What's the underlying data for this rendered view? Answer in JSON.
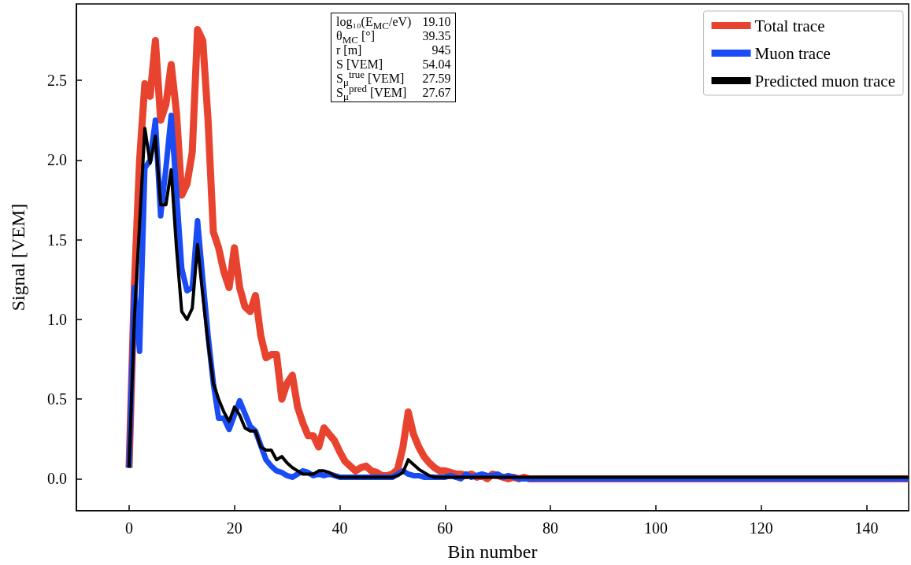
{
  "chart_data": {
    "type": "line",
    "xlabel": "Bin number",
    "ylabel": "Signal [VEM]",
    "xlim": [
      -10,
      148
    ],
    "ylim": [
      -0.2,
      2.98
    ],
    "xticks": [
      0,
      20,
      40,
      60,
      80,
      100,
      120,
      140
    ],
    "yticks": [
      {
        "value": 0,
        "label": "0.0"
      },
      {
        "value": 0.5,
        "label": "0.5"
      },
      {
        "value": 1,
        "label": "1.0"
      },
      {
        "value": 1.5,
        "label": "1.5"
      },
      {
        "value": 2,
        "label": "2.0"
      },
      {
        "value": 2.5,
        "label": "2.5"
      }
    ],
    "legend": "top right",
    "x": [
      0,
      1,
      2,
      3,
      4,
      5,
      6,
      7,
      8,
      9,
      10,
      11,
      12,
      13,
      14,
      15,
      16,
      17,
      18,
      19,
      20,
      21,
      22,
      23,
      24,
      25,
      26,
      27,
      28,
      29,
      30,
      31,
      32,
      33,
      34,
      35,
      36,
      37,
      38,
      39,
      40,
      41,
      42,
      43,
      44,
      45,
      46,
      47,
      48,
      49,
      50,
      51,
      52,
      53,
      54,
      55,
      56,
      57,
      58,
      59,
      60,
      61,
      62,
      63,
      64,
      65,
      66,
      67,
      68,
      69,
      70,
      71,
      72,
      73,
      74,
      75,
      76,
      77,
      78,
      79,
      148
    ],
    "series": [
      {
        "name": "Total trace",
        "color": "#e8432e",
        "values": [
          0.07,
          1.2,
          2.0,
          2.48,
          2.4,
          2.75,
          2.25,
          2.35,
          2.6,
          2.3,
          1.78,
          1.85,
          2.05,
          2.82,
          2.75,
          2.25,
          1.55,
          1.45,
          1.3,
          1.2,
          1.45,
          1.2,
          1.08,
          1.05,
          1.15,
          0.9,
          0.76,
          0.78,
          0.78,
          0.5,
          0.6,
          0.65,
          0.45,
          0.35,
          0.27,
          0.27,
          0.2,
          0.32,
          0.28,
          0.24,
          0.17,
          0.11,
          0.08,
          0.05,
          0.07,
          0.08,
          0.05,
          0.04,
          0.02,
          0.02,
          0.03,
          0.06,
          0.2,
          0.42,
          0.28,
          0.2,
          0.14,
          0.1,
          0.07,
          0.05,
          0.05,
          0.04,
          0.03,
          0.03,
          0.02,
          0.03,
          0.01,
          0.02,
          0.0,
          0.03,
          0.02,
          0.01,
          0.0,
          0.01,
          0.0,
          0.01,
          0.0,
          0.0,
          0.0,
          0.0,
          0.0
        ]
      },
      {
        "name": "Muon trace",
        "color": "#1a4cf5",
        "values": [
          0.07,
          1.2,
          0.8,
          1.95,
          2.0,
          2.25,
          1.65,
          1.95,
          2.28,
          1.8,
          1.32,
          1.18,
          1.2,
          1.62,
          1.25,
          0.9,
          0.6,
          0.38,
          0.38,
          0.31,
          0.4,
          0.49,
          0.41,
          0.33,
          0.3,
          0.21,
          0.12,
          0.08,
          0.05,
          0.04,
          0.02,
          0.01,
          0.03,
          0.05,
          0.04,
          0.02,
          0.03,
          0.02,
          0.03,
          0.02,
          0.01,
          0.01,
          0.01,
          0.01,
          0.01,
          0.01,
          0.01,
          0.01,
          0.01,
          0.01,
          0.01,
          0.03,
          0.05,
          0.03,
          0.02,
          0.02,
          0.01,
          0.01,
          0.01,
          0.01,
          0.01,
          0.02,
          0.01,
          0.0,
          0.03,
          0.01,
          0.02,
          0.03,
          0.02,
          0.02,
          0.03,
          0.01,
          0.02,
          0.01,
          0.0,
          0.0,
          0.0,
          0.0,
          0.0,
          0.0,
          0.0
        ]
      },
      {
        "name": "Predicted muon trace",
        "color": "#000000",
        "values": [
          0.07,
          1.0,
          1.6,
          2.2,
          1.98,
          2.15,
          1.72,
          1.72,
          1.94,
          1.45,
          1.05,
          1.0,
          1.07,
          1.47,
          1.15,
          0.85,
          0.6,
          0.5,
          0.42,
          0.36,
          0.45,
          0.4,
          0.32,
          0.3,
          0.3,
          0.2,
          0.18,
          0.18,
          0.12,
          0.14,
          0.1,
          0.07,
          0.05,
          0.03,
          0.03,
          0.03,
          0.05,
          0.05,
          0.04,
          0.02,
          0.01,
          0.01,
          0.01,
          0.01,
          0.01,
          0.01,
          0.01,
          0.01,
          0.01,
          0.01,
          0.01,
          0.02,
          0.04,
          0.12,
          0.09,
          0.06,
          0.04,
          0.02,
          0.01,
          0.01,
          0.01,
          0.01,
          0.01,
          0.01,
          0.01,
          0.01,
          0.01,
          0.01,
          0.01,
          0.01,
          0.01,
          0.01,
          0.01,
          0.01,
          0.01,
          0.01,
          0.01,
          0.01,
          0.01,
          0.01,
          0.01
        ]
      }
    ],
    "annotations": [
      "log₁₀(E$_{MC}$/eV)",
      "19.10",
      "θ$_{MC}$ [°]",
      "39.35",
      "r [m]",
      "945",
      "S [VEM]",
      "54.04",
      "S$_{μ}$$^{true}$ [VEM]",
      "27.59",
      "S$_{μ}$$^{pred}$ [VEM]",
      "27.67"
    ]
  }
}
